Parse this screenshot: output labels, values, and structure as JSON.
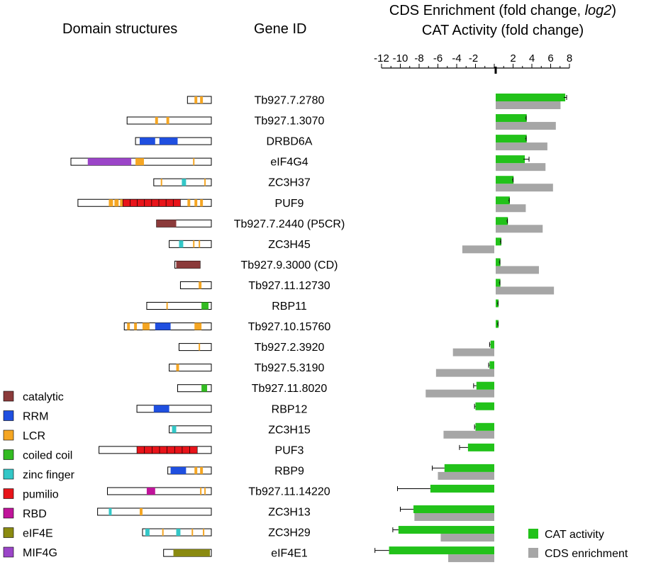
{
  "headers": {
    "domain_structures": "Domain structures",
    "gene_id": "Gene ID",
    "chart_title_line1_prefix": "CDS Enrichment (fold change, ",
    "chart_title_line1_italic": "log2",
    "chart_title_line1_suffix": ")",
    "chart_title_line2": "CAT Activity (fold change)"
  },
  "colors": {
    "catalytic": "#8b3a3a",
    "RRM": "#1f4fe0",
    "LCR": "#f5a623",
    "coiled coil": "#33bb22",
    "zinc finger": "#33c7c7",
    "pumilio": "#e8141a",
    "RBD": "#c0149a",
    "eIF4E": "#8a8a10",
    "MIF4G": "#9b45c8",
    "cat_bar": "#22c21a",
    "cds_bar": "#a6a6a6"
  },
  "domain_legend": [
    {
      "label": "catalytic",
      "key": "catalytic"
    },
    {
      "label": "RRM",
      "key": "RRM"
    },
    {
      "label": "LCR",
      "key": "LCR"
    },
    {
      "label": "coiled coil",
      "key": "coiled coil"
    },
    {
      "label": "zinc finger",
      "key": "zinc finger"
    },
    {
      "label": "pumilio",
      "key": "pumilio"
    },
    {
      "label": "RBD",
      "key": "RBD"
    },
    {
      "label": "eIF4E",
      "key": "eIF4E"
    },
    {
      "label": "MIF4G",
      "key": "MIF4G"
    }
  ],
  "domain_structures": [
    {
      "gene": "Tb927.7.2780",
      "span": [
        0.83,
        1.0
      ],
      "domains": [
        {
          "type": "LCR",
          "range": [
            0.88,
            0.9
          ]
        },
        {
          "type": "LCR",
          "range": [
            0.92,
            0.94
          ]
        }
      ]
    },
    {
      "gene": "Tb927.1.3070",
      "span": [
        0.4,
        1.0
      ],
      "domains": [
        {
          "type": "LCR",
          "range": [
            0.6,
            0.62
          ]
        },
        {
          "type": "LCR",
          "range": [
            0.68,
            0.7
          ]
        }
      ]
    },
    {
      "gene": "DRBD6A",
      "span": [
        0.46,
        1.0
      ],
      "domains": [
        {
          "type": "RRM",
          "range": [
            0.49,
            0.6
          ]
        },
        {
          "type": "RRM",
          "range": [
            0.63,
            0.76
          ]
        }
      ]
    },
    {
      "gene": "eIF4G4",
      "span": [
        0.0,
        1.0
      ],
      "domains": [
        {
          "type": "MIF4G",
          "range": [
            0.12,
            0.43
          ]
        },
        {
          "type": "LCR",
          "range": [
            0.46,
            0.52
          ]
        },
        {
          "type": "LCR",
          "range": [
            0.87,
            0.88
          ]
        }
      ]
    },
    {
      "gene": "ZC3H37",
      "span": [
        0.59,
        1.0
      ],
      "domains": [
        {
          "type": "LCR",
          "range": [
            0.64,
            0.65
          ]
        },
        {
          "type": "zinc finger",
          "range": [
            0.79,
            0.82
          ]
        },
        {
          "type": "LCR",
          "range": [
            0.95,
            0.96
          ]
        }
      ]
    },
    {
      "gene": "PUF9",
      "span": [
        0.05,
        1.0
      ],
      "domains": [
        {
          "type": "LCR",
          "range": [
            0.27,
            0.3
          ]
        },
        {
          "type": "LCR",
          "range": [
            0.31,
            0.34
          ]
        },
        {
          "type": "LCR",
          "range": [
            0.35,
            0.37
          ]
        },
        {
          "type": "pumilio",
          "range": [
            0.37,
            0.78
          ]
        },
        {
          "type": "LCR",
          "range": [
            0.83,
            0.85
          ]
        },
        {
          "type": "LCR",
          "range": [
            0.88,
            0.9
          ]
        },
        {
          "type": "LCR",
          "range": [
            0.92,
            0.94
          ]
        }
      ]
    },
    {
      "gene": "Tb927.7.2440 (P5CR)",
      "span": [
        0.61,
        1.0
      ],
      "domains": [
        {
          "type": "catalytic",
          "range": [
            0.61,
            0.75
          ]
        }
      ]
    },
    {
      "gene": "ZC3H45",
      "span": [
        0.7,
        1.0
      ],
      "domains": [
        {
          "type": "zinc finger",
          "range": [
            0.77,
            0.8
          ]
        },
        {
          "type": "LCR",
          "range": [
            0.87,
            0.88
          ]
        },
        {
          "type": "LCR",
          "range": [
            0.91,
            0.92
          ]
        }
      ]
    },
    {
      "gene": "Tb927.9.3000 (CD)",
      "span": [
        0.74,
        0.92
      ],
      "domains": [
        {
          "type": "catalytic",
          "range": [
            0.75,
            0.92
          ]
        }
      ]
    },
    {
      "gene": "Tb927.11.12730",
      "span": [
        0.78,
        1.0
      ],
      "domains": [
        {
          "type": "LCR",
          "range": [
            0.91,
            0.93
          ]
        }
      ]
    },
    {
      "gene": "RBP11",
      "span": [
        0.54,
        1.0
      ],
      "domains": [
        {
          "type": "LCR",
          "range": [
            0.68,
            0.69
          ]
        },
        {
          "type": "coiled coil",
          "range": [
            0.93,
            0.98
          ]
        }
      ]
    },
    {
      "gene": "Tb927.10.15760",
      "span": [
        0.38,
        1.0
      ],
      "domains": [
        {
          "type": "LCR",
          "range": [
            0.4,
            0.42
          ]
        },
        {
          "type": "LCR",
          "range": [
            0.45,
            0.47
          ]
        },
        {
          "type": "LCR",
          "range": [
            0.51,
            0.56
          ]
        },
        {
          "type": "RRM",
          "range": [
            0.6,
            0.71
          ]
        },
        {
          "type": "LCR",
          "range": [
            0.88,
            0.93
          ]
        }
      ]
    },
    {
      "gene": "Tb927.2.3920",
      "span": [
        0.77,
        1.0
      ],
      "domains": [
        {
          "type": "LCR",
          "range": [
            0.91,
            0.92
          ]
        }
      ]
    },
    {
      "gene": "Tb927.5.3190",
      "span": [
        0.7,
        1.0
      ],
      "domains": [
        {
          "type": "LCR",
          "range": [
            0.75,
            0.77
          ]
        }
      ]
    },
    {
      "gene": "Tb927.11.8020",
      "span": [
        0.76,
        1.0
      ],
      "domains": [
        {
          "type": "coiled coil",
          "range": [
            0.93,
            0.97
          ]
        }
      ]
    },
    {
      "gene": "RBP12",
      "span": [
        0.47,
        1.0
      ],
      "domains": [
        {
          "type": "RRM",
          "range": [
            0.59,
            0.7
          ]
        }
      ]
    },
    {
      "gene": "ZC3H15",
      "span": [
        0.7,
        1.0
      ],
      "domains": [
        {
          "type": "zinc finger",
          "range": [
            0.72,
            0.75
          ]
        }
      ]
    },
    {
      "gene": "PUF3",
      "span": [
        0.2,
        1.0
      ],
      "domains": [
        {
          "type": "pumilio",
          "range": [
            0.47,
            0.9
          ]
        }
      ]
    },
    {
      "gene": "RBP9",
      "span": [
        0.69,
        1.0
      ],
      "domains": [
        {
          "type": "RRM",
          "range": [
            0.71,
            0.82
          ]
        },
        {
          "type": "LCR",
          "range": [
            0.88,
            0.9
          ]
        },
        {
          "type": "LCR",
          "range": [
            0.92,
            0.94
          ]
        }
      ]
    },
    {
      "gene": "Tb927.11.14220",
      "span": [
        0.26,
        1.0
      ],
      "domains": [
        {
          "type": "RBD",
          "range": [
            0.54,
            0.6
          ]
        },
        {
          "type": "LCR",
          "range": [
            0.92,
            0.93
          ]
        },
        {
          "type": "LCR",
          "range": [
            0.95,
            0.96
          ]
        }
      ]
    },
    {
      "gene": "ZC3H13",
      "span": [
        0.19,
        1.0
      ],
      "domains": [
        {
          "type": "zinc finger",
          "range": [
            0.27,
            0.29
          ]
        },
        {
          "type": "LCR",
          "range": [
            0.49,
            0.51
          ]
        }
      ]
    },
    {
      "gene": "ZC3H29",
      "span": [
        0.51,
        1.0
      ],
      "domains": [
        {
          "type": "zinc finger",
          "range": [
            0.53,
            0.56
          ]
        },
        {
          "type": "LCR",
          "range": [
            0.65,
            0.66
          ]
        },
        {
          "type": "zinc finger",
          "range": [
            0.75,
            0.78
          ]
        },
        {
          "type": "LCR",
          "range": [
            0.86,
            0.87
          ]
        },
        {
          "type": "LCR",
          "range": [
            0.94,
            0.95
          ]
        }
      ]
    },
    {
      "gene": "eIF4E1",
      "span": [
        0.66,
        1.0
      ],
      "domains": [
        {
          "type": "eIF4E",
          "range": [
            0.73,
            0.99
          ]
        }
      ]
    }
  ],
  "chart_data": {
    "type": "bar",
    "orientation": "horizontal",
    "title": "CDS Enrichment (fold change, log2) / CAT Activity (fold change)",
    "xlim": [
      -12,
      8
    ],
    "xticks": [
      -12,
      -10,
      -8,
      -6,
      -4,
      -2,
      2,
      4,
      6,
      8
    ],
    "categories": [
      "Tb927.7.2780",
      "Tb927.1.3070",
      "DRBD6A",
      "eIF4G4",
      "ZC3H37",
      "PUF9",
      "Tb927.7.2440 (P5CR)",
      "ZC3H45",
      "Tb927.9.3000 (CD)",
      "Tb927.11.12730",
      "RBP11",
      "Tb927.10.15760",
      "Tb927.2.3920",
      "Tb927.5.3190",
      "Tb927.11.8020",
      "RBP12",
      "ZC3H15",
      "PUF3",
      "RBP9",
      "Tb927.11.14220",
      "ZC3H13",
      "ZC3H29",
      "eIF4E1"
    ],
    "series": [
      {
        "name": "CAT activity",
        "color_key": "cat_bar",
        "values": [
          7.4,
          3.3,
          3.3,
          3.1,
          1.9,
          1.5,
          1.3,
          0.6,
          0.5,
          0.5,
          0.3,
          0.3,
          -0.4,
          -0.5,
          -1.9,
          -2.0,
          -2.0,
          -2.8,
          -5.3,
          -6.8,
          -8.6,
          -10.2,
          -11.2
        ],
        "errors": [
          0.3,
          0.1,
          0.1,
          0.6,
          0.1,
          0.1,
          0.1,
          0.1,
          0.1,
          0.1,
          0.1,
          0.1,
          0.1,
          0.1,
          0.3,
          0.1,
          0.1,
          0.9,
          1.3,
          3.5,
          1.4,
          0.6,
          1.5
        ]
      },
      {
        "name": "CDS enrichment",
        "color_key": "cds_bar",
        "values": [
          6.9,
          6.4,
          5.5,
          5.3,
          6.1,
          3.2,
          5.0,
          -3.4,
          4.6,
          6.2,
          null,
          null,
          -4.4,
          -6.2,
          -7.3,
          null,
          -5.4,
          null,
          -6.0,
          null,
          -8.5,
          -5.7,
          -4.9
        ]
      }
    ],
    "legend": {
      "position": "bottom-right",
      "entries": [
        "CAT activity",
        "CDS enrichment"
      ]
    }
  }
}
